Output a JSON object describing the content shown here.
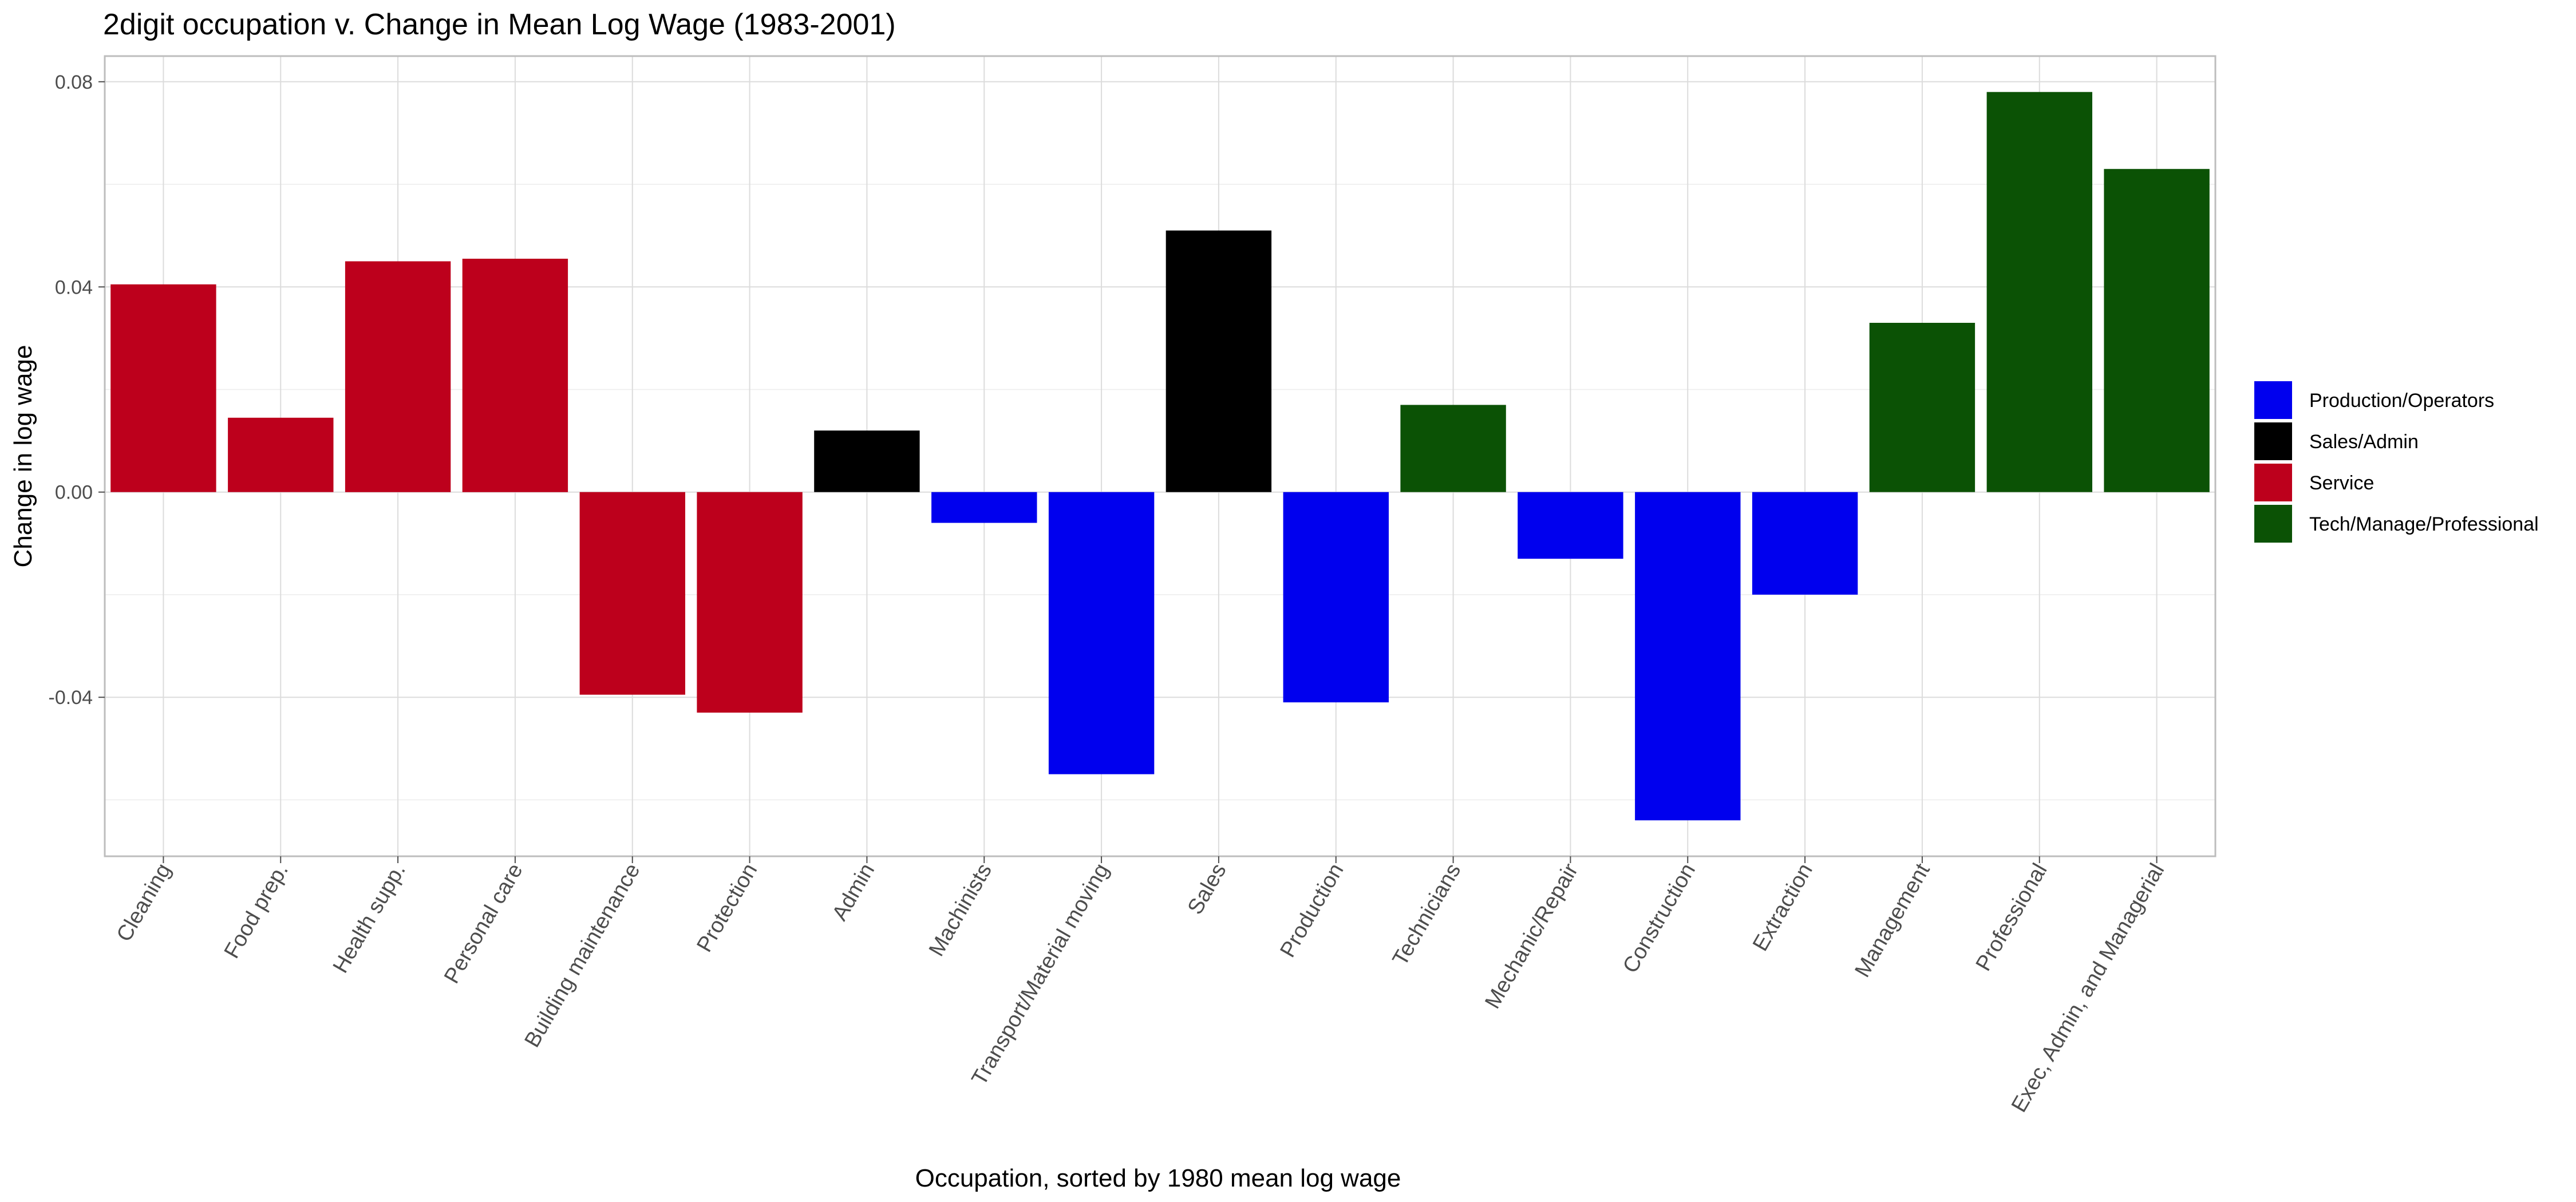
{
  "chart_data": {
    "type": "bar",
    "title": "2digit occupation v. Change in Mean Log Wage (1983-2001)",
    "xlabel": "Occupation, sorted by 1980 mean log wage",
    "ylabel": "Change in log wage",
    "ylim": [
      -0.071,
      0.085
    ],
    "y_ticks": [
      -0.04,
      0.0,
      0.04,
      0.08
    ],
    "y_tick_labels": [
      "-0.04",
      "0.00",
      "0.04",
      "0.08"
    ],
    "grid": true,
    "legend_position": "right",
    "categories": [
      "Cleaning",
      "Food prep.",
      "Health supp.",
      "Personal care",
      "Building maintenance",
      "Protection",
      "Admin",
      "Machinists",
      "Transport/Material moving",
      "Sales",
      "Production",
      "Technicians",
      "Mechanic/Repair",
      "Construction",
      "Extraction",
      "Management",
      "Professional",
      "Exec, Admin, and Managerial"
    ],
    "values": [
      0.0405,
      0.0145,
      0.045,
      0.0455,
      -0.0395,
      -0.043,
      0.012,
      -0.006,
      -0.055,
      0.051,
      -0.041,
      0.017,
      -0.013,
      -0.064,
      -0.02,
      0.033,
      0.078,
      0.063
    ],
    "groups": [
      "Service",
      "Service",
      "Service",
      "Service",
      "Service",
      "Service",
      "Sales/Admin",
      "Production/Operators",
      "Production/Operators",
      "Sales/Admin",
      "Production/Operators",
      "Tech/Manage/Professional",
      "Production/Operators",
      "Production/Operators",
      "Production/Operators",
      "Tech/Manage/Professional",
      "Tech/Manage/Professional",
      "Tech/Manage/Professional"
    ],
    "legend": [
      {
        "name": "Production/Operators",
        "color": "#0000ee"
      },
      {
        "name": "Sales/Admin",
        "color": "#000000"
      },
      {
        "name": "Service",
        "color": "#bd001c"
      },
      {
        "name": "Tech/Manage/Professional",
        "color": "#0b5205"
      }
    ]
  }
}
